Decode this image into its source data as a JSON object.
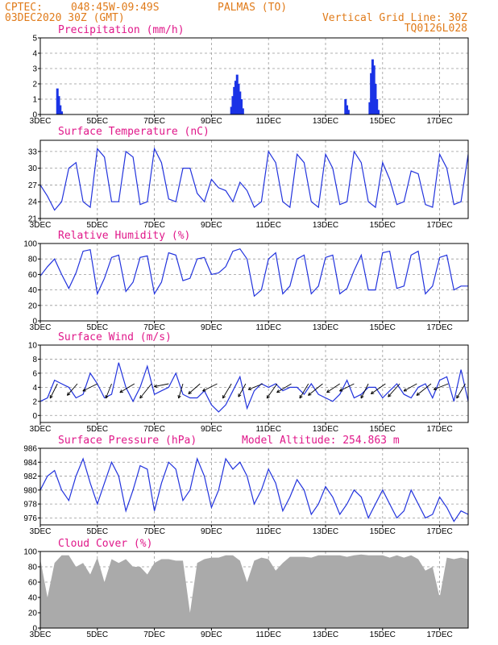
{
  "header": {
    "source": "CPTEC:",
    "coords": "048:45W-09:49S",
    "location": "PALMAS (TO)",
    "run": "03DEC2020 30Z (GMT)",
    "grid_note": "Vertical Grid Line: 30Z",
    "station_code": "TQ0126L028"
  },
  "colors": {
    "header": "#e07b1a",
    "panel_title": "#e0188a",
    "line": "#2233dd",
    "cloud": "#aaaaaa",
    "bar": "#1a33e6",
    "arrow": "#000000"
  },
  "chart_data": [
    {
      "type": "bar",
      "title": "Precipitation (mm/h)",
      "x_ticks": [
        "3DEC",
        "5DEC",
        "7DEC",
        "9DEC",
        "11DEC",
        "13DEC",
        "15DEC",
        "17DEC"
      ],
      "ylim": [
        0,
        5
      ],
      "y_ticks": [
        0,
        1,
        2,
        3,
        4,
        5
      ],
      "grid": true,
      "x": [
        0.6,
        0.65,
        0.7,
        0.75,
        6.7,
        6.75,
        6.8,
        6.85,
        6.9,
        6.95,
        7.0,
        7.05,
        7.1,
        10.7,
        10.75,
        10.8,
        11.55,
        11.6,
        11.65,
        11.7,
        11.75,
        11.8,
        11.85
      ],
      "values": [
        1.7,
        1.2,
        0.6,
        0.2,
        0.5,
        1.2,
        1.8,
        2.2,
        2.6,
        2.0,
        1.5,
        1.0,
        0.4,
        1.0,
        0.6,
        0.3,
        0.8,
        2.7,
        3.6,
        3.2,
        2.0,
        1.0,
        0.3
      ]
    },
    {
      "type": "line",
      "title": "Surface Temperature (nC)",
      "x_ticks": [
        "3DEC",
        "5DEC",
        "7DEC",
        "9DEC",
        "11DEC",
        "13DEC",
        "15DEC",
        "17DEC"
      ],
      "ylim": [
        21,
        35
      ],
      "y_ticks": [
        21,
        24,
        27,
        30,
        33
      ],
      "grid": true,
      "x": [
        0,
        0.25,
        0.5,
        0.75,
        1,
        1.25,
        1.5,
        1.75,
        2,
        2.25,
        2.5,
        2.75,
        3,
        3.25,
        3.5,
        3.75,
        4,
        4.25,
        4.5,
        4.75,
        5,
        5.25,
        5.5,
        5.75,
        6,
        6.25,
        6.5,
        6.75,
        7,
        7.25,
        7.5,
        7.75,
        8,
        8.25,
        8.5,
        8.75,
        9,
        9.25,
        9.5,
        9.75,
        10,
        10.25,
        10.5,
        10.75,
        11,
        11.25,
        11.5,
        11.75,
        12,
        12.25,
        12.5,
        12.75,
        13,
        13.25,
        13.5,
        13.75,
        14,
        14.25,
        14.5,
        14.75,
        15
      ],
      "values": [
        27,
        25,
        22.5,
        24,
        30,
        31,
        24,
        23,
        33.5,
        32,
        24,
        24,
        33,
        32,
        23.5,
        24,
        33.5,
        31,
        24.5,
        24,
        30,
        30,
        25.5,
        24,
        28,
        26.5,
        26,
        24,
        27.5,
        26,
        23,
        24,
        33,
        31,
        24,
        23,
        32.5,
        31,
        24,
        23,
        32.5,
        30,
        23.5,
        24,
        33,
        31,
        24,
        23,
        31,
        28,
        23.5,
        24,
        29.5,
        29,
        23.5,
        23,
        32.5,
        30,
        23.5,
        24,
        32.5
      ]
    },
    {
      "type": "line",
      "title": "Relative Humidity (%)",
      "x_ticks": [
        "3DEC",
        "5DEC",
        "7DEC",
        "9DEC",
        "11DEC",
        "13DEC",
        "15DEC",
        "17DEC"
      ],
      "ylim": [
        0,
        100
      ],
      "y_ticks": [
        0,
        20,
        40,
        60,
        80,
        100
      ],
      "grid": true,
      "x": [
        0,
        0.25,
        0.5,
        0.75,
        1,
        1.25,
        1.5,
        1.75,
        2,
        2.25,
        2.5,
        2.75,
        3,
        3.25,
        3.5,
        3.75,
        4,
        4.25,
        4.5,
        4.75,
        5,
        5.25,
        5.5,
        5.75,
        6,
        6.25,
        6.5,
        6.75,
        7,
        7.25,
        7.5,
        7.75,
        8,
        8.25,
        8.5,
        8.75,
        9,
        9.25,
        9.5,
        9.75,
        10,
        10.25,
        10.5,
        10.75,
        11,
        11.25,
        11.5,
        11.75,
        12,
        12.25,
        12.5,
        12.75,
        13,
        13.25,
        13.5,
        13.75,
        14,
        14.25,
        14.5,
        14.75,
        15
      ],
      "values": [
        58,
        70,
        80,
        60,
        42,
        62,
        90,
        92,
        35,
        55,
        82,
        85,
        38,
        50,
        82,
        84,
        35,
        50,
        88,
        85,
        52,
        55,
        80,
        82,
        60,
        62,
        70,
        90,
        93,
        80,
        32,
        40,
        80,
        88,
        35,
        45,
        80,
        85,
        35,
        45,
        82,
        85,
        35,
        42,
        65,
        85,
        40,
        40,
        88,
        90,
        42,
        45,
        85,
        90,
        35,
        45,
        82,
        85,
        40,
        45,
        45
      ]
    },
    {
      "type": "line",
      "title": "Surface Wind (m/s)",
      "x_ticks": [
        "3DEC",
        "5DEC",
        "7DEC",
        "9DEC",
        "11DEC",
        "13DEC",
        "15DEC",
        "17DEC"
      ],
      "ylim": [
        -1,
        10
      ],
      "y_ticks": [
        0,
        2,
        4,
        6,
        8,
        10
      ],
      "grid": true,
      "x": [
        0,
        0.25,
        0.5,
        0.75,
        1,
        1.25,
        1.5,
        1.75,
        2,
        2.25,
        2.5,
        2.75,
        3,
        3.25,
        3.5,
        3.75,
        4,
        4.25,
        4.5,
        4.75,
        5,
        5.25,
        5.5,
        5.75,
        6,
        6.25,
        6.5,
        6.75,
        7,
        7.25,
        7.5,
        7.75,
        8,
        8.25,
        8.5,
        8.75,
        9,
        9.25,
        9.5,
        9.75,
        10,
        10.25,
        10.5,
        10.75,
        11,
        11.25,
        11.5,
        11.75,
        12,
        12.25,
        12.5,
        12.75,
        13,
        13.25,
        13.5,
        13.75,
        14,
        14.25,
        14.5,
        14.75,
        15
      ],
      "values": [
        2,
        2.5,
        5,
        4.5,
        4,
        2.5,
        3,
        6,
        4.5,
        2.5,
        3,
        7.5,
        4,
        2,
        4,
        7,
        3,
        3.5,
        4,
        6,
        3,
        2.5,
        2.5,
        3.5,
        1.5,
        0.5,
        1.5,
        3.5,
        5.5,
        1,
        3.5,
        4.5,
        4,
        4.5,
        3.5,
        4,
        4,
        3,
        4.5,
        3,
        2.5,
        2,
        3,
        5,
        2.5,
        3,
        4,
        4,
        2.5,
        3.5,
        4.5,
        3,
        2.5,
        4,
        4.5,
        2.5,
        5,
        5.5,
        2,
        6.5,
        2
      ],
      "wind_vectors": {
        "x": [
          0.6,
          1.3,
          2.0,
          2.5,
          3.3,
          3.9,
          4.5,
          5.0,
          5.6,
          6.2,
          6.7,
          7.2,
          7.8,
          8.3,
          8.8,
          9.4,
          9.9,
          10.5,
          11.0,
          11.5,
          12.1,
          12.6,
          13.2,
          13.7,
          14.3,
          14.9
        ],
        "u": [
          -0.5,
          -0.7,
          -1,
          -0.4,
          -1,
          -0.8,
          -1,
          -0.3,
          -0.8,
          -1,
          -0.6,
          -0.5,
          -1,
          -0.7,
          -1,
          -0.6,
          -1,
          -0.9,
          -1,
          -0.5,
          -1,
          -0.8,
          -0.9,
          -1,
          -1,
          -0.6
        ],
        "v": [
          -1,
          -0.8,
          -0.5,
          -1,
          -0.6,
          -1,
          -0.2,
          -1,
          -0.7,
          -0.5,
          -1,
          -0.9,
          -0.4,
          -1,
          -0.6,
          -1,
          -0.8,
          -0.6,
          -0.5,
          -1,
          -0.7,
          -0.9,
          -0.5,
          -0.8,
          -0.4,
          -1
        ]
      }
    },
    {
      "type": "line",
      "title": "Surface Pressure (hPa)",
      "annotation": "Model Altitude: 254.863 m",
      "x_ticks": [
        "3DEC",
        "5DEC",
        "7DEC",
        "9DEC",
        "11DEC",
        "13DEC",
        "15DEC",
        "17DEC"
      ],
      "ylim": [
        975,
        986
      ],
      "y_ticks": [
        976,
        978,
        980,
        982,
        984,
        986
      ],
      "grid": true,
      "x": [
        0,
        0.25,
        0.5,
        0.75,
        1,
        1.25,
        1.5,
        1.75,
        2,
        2.25,
        2.5,
        2.75,
        3,
        3.25,
        3.5,
        3.75,
        4,
        4.25,
        4.5,
        4.75,
        5,
        5.25,
        5.5,
        5.75,
        6,
        6.25,
        6.5,
        6.75,
        7,
        7.25,
        7.5,
        7.75,
        8,
        8.25,
        8.5,
        8.75,
        9,
        9.25,
        9.5,
        9.75,
        10,
        10.25,
        10.5,
        10.75,
        11,
        11.25,
        11.5,
        11.75,
        12,
        12.25,
        12.5,
        12.75,
        13,
        13.25,
        13.5,
        13.75,
        14,
        14.25,
        14.5,
        14.75,
        15
      ],
      "values": [
        980,
        982,
        982.8,
        980,
        978.5,
        982,
        984.5,
        981,
        978,
        981,
        984,
        982,
        977,
        980,
        983.5,
        983,
        977,
        981,
        984,
        983,
        978.5,
        980,
        984.5,
        982,
        977.5,
        980,
        984.5,
        983,
        984,
        982,
        978,
        980,
        983,
        981,
        977,
        979,
        981.5,
        980,
        976.5,
        978,
        980.5,
        979,
        976.5,
        978,
        980,
        979,
        976,
        978,
        980,
        978,
        976,
        977,
        980,
        978,
        976,
        976.5,
        979,
        977.5,
        975.5,
        977,
        976.5
      ]
    },
    {
      "type": "area",
      "title": "Cloud Cover (%)",
      "x_ticks": [
        "3DEC",
        "5DEC",
        "7DEC",
        "9DEC",
        "11DEC",
        "13DEC",
        "15DEC",
        "17DEC"
      ],
      "ylim": [
        0,
        100
      ],
      "y_ticks": [
        0,
        20,
        40,
        60,
        80,
        100
      ],
      "grid": true,
      "x": [
        0,
        0.25,
        0.5,
        0.75,
        1,
        1.25,
        1.5,
        1.75,
        2,
        2.25,
        2.5,
        2.75,
        3,
        3.25,
        3.5,
        3.75,
        4,
        4.25,
        4.5,
        4.75,
        5,
        5.25,
        5.5,
        5.75,
        6,
        6.25,
        6.5,
        6.75,
        7,
        7.25,
        7.5,
        7.75,
        8,
        8.25,
        8.5,
        8.75,
        9,
        9.25,
        9.5,
        9.75,
        10,
        10.25,
        10.5,
        10.75,
        11,
        11.25,
        11.5,
        11.75,
        12,
        12.25,
        12.5,
        12.75,
        13,
        13.25,
        13.5,
        13.75,
        14,
        14.25,
        14.5,
        14.75,
        15
      ],
      "values": [
        90,
        40,
        85,
        95,
        95,
        80,
        85,
        70,
        92,
        60,
        90,
        85,
        90,
        80,
        80,
        70,
        85,
        90,
        90,
        88,
        88,
        20,
        85,
        90,
        92,
        92,
        95,
        95,
        88,
        60,
        88,
        92,
        90,
        75,
        85,
        93,
        93,
        93,
        92,
        95,
        95,
        95,
        95,
        93,
        95,
        96,
        95,
        95,
        95,
        92,
        95,
        92,
        95,
        90,
        75,
        80,
        40,
        92,
        90,
        92,
        90
      ]
    }
  ]
}
